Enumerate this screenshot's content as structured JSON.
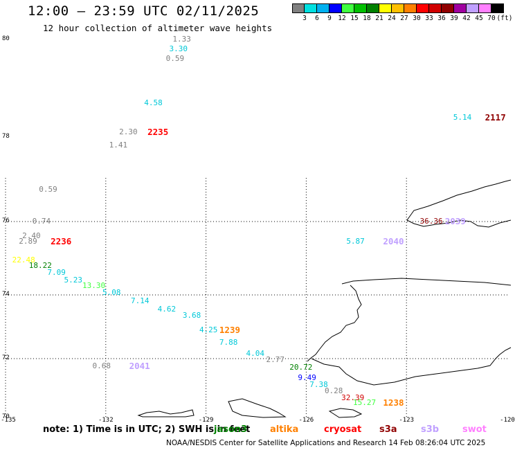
{
  "title": "12:00 – 23:59 UTC 02/11/2025",
  "subtitle": "12 hour collection of altimeter wave heights",
  "colorbar": {
    "colors": [
      "#808080",
      "#00e0e0",
      "#00b0f0",
      "#0000ff",
      "#40ff40",
      "#00c000",
      "#008000",
      "#ffff00",
      "#ffc000",
      "#ff8000",
      "#ff0000",
      "#d00000",
      "#900000",
      "#a000a0",
      "#c0a0ff",
      "#ff80ff",
      "#000000"
    ],
    "labels": [
      "3",
      "6",
      "9",
      "12",
      "15",
      "18",
      "21",
      "24",
      "27",
      "30",
      "33",
      "36",
      "39",
      "42",
      "45",
      "70"
    ],
    "unit": "(ft)"
  },
  "lat_labels": [
    {
      "text": "80",
      "lat": 80
    },
    {
      "text": "78",
      "lat": 78
    },
    {
      "text": "76",
      "lat": 76
    },
    {
      "text": "74",
      "lat": 74
    },
    {
      "text": "72",
      "lat": 72
    },
    {
      "text": "70",
      "lat": 70
    }
  ],
  "lon_labels": [
    {
      "text": "-135",
      "lon": -135
    },
    {
      "text": "-132",
      "lon": -132
    },
    {
      "text": "-129",
      "lon": -129
    },
    {
      "text": "-126",
      "lon": -126
    },
    {
      "text": "-123",
      "lon": -123
    },
    {
      "text": "-120",
      "lon": -120
    }
  ],
  "wave_heights": [
    {
      "value": "1.33",
      "color": "#808080",
      "lon": -130.0,
      "lat": 80.0
    },
    {
      "value": "3.30",
      "color": "#00c8d8",
      "lon": -130.1,
      "lat": 79.8
    },
    {
      "value": "0.59",
      "color": "#808080",
      "lon": -130.2,
      "lat": 79.6
    },
    {
      "value": "4.58",
      "color": "#00c8d8",
      "lon": -130.85,
      "lat": 78.7
    },
    {
      "value": "5.14",
      "color": "#00c8d8",
      "lon": -121.6,
      "lat": 78.4
    },
    {
      "value": "2.30",
      "color": "#808080",
      "lon": -131.6,
      "lat": 78.1
    },
    {
      "value": "1.41",
      "color": "#808080",
      "lon": -131.9,
      "lat": 77.8
    },
    {
      "value": "0.59",
      "color": "#808080",
      "lon": -134.0,
      "lat": 76.75
    },
    {
      "value": "0.74",
      "color": "#808080",
      "lon": -134.2,
      "lat": 76.0
    },
    {
      "value": "36.36",
      "color": "#900000",
      "lon": -122.6,
      "lat": 76.0
    },
    {
      "value": "2.40",
      "color": "#808080",
      "lon": -134.5,
      "lat": 75.6
    },
    {
      "value": "2.89",
      "color": "#808080",
      "lon": -134.6,
      "lat": 75.45
    },
    {
      "value": "5.87",
      "color": "#00c8d8",
      "lon": -124.8,
      "lat": 75.45
    },
    {
      "value": "22.48",
      "color": "#ffff00",
      "lon": -134.8,
      "lat": 74.95
    },
    {
      "value": "18.22",
      "color": "#008000",
      "lon": -134.3,
      "lat": 74.8
    },
    {
      "value": "7.09",
      "color": "#00c8d8",
      "lon": -133.75,
      "lat": 74.6
    },
    {
      "value": "5.23",
      "color": "#00c8d8",
      "lon": -133.25,
      "lat": 74.4
    },
    {
      "value": "13.30",
      "color": "#40ff40",
      "lon": -132.7,
      "lat": 74.25
    },
    {
      "value": "5.08",
      "color": "#00c8d8",
      "lon": -132.1,
      "lat": 74.05
    },
    {
      "value": "7.14",
      "color": "#00c8d8",
      "lon": -131.25,
      "lat": 73.8
    },
    {
      "value": "4.62",
      "color": "#00c8d8",
      "lon": -130.45,
      "lat": 73.55
    },
    {
      "value": "3.68",
      "color": "#00c8d8",
      "lon": -129.7,
      "lat": 73.35
    },
    {
      "value": "4.25",
      "color": "#00c8d8",
      "lon": -129.2,
      "lat": 72.9
    },
    {
      "value": "7.88",
      "color": "#00c8d8",
      "lon": -128.6,
      "lat": 72.5
    },
    {
      "value": "4.04",
      "color": "#00c8d8",
      "lon": -127.8,
      "lat": 72.15
    },
    {
      "value": "2.77",
      "color": "#808080",
      "lon": -127.2,
      "lat": 71.95
    },
    {
      "value": "0.68",
      "color": "#808080",
      "lon": -132.4,
      "lat": 71.75
    },
    {
      "value": "20.72",
      "color": "#008000",
      "lon": -126.5,
      "lat": 71.7
    },
    {
      "value": "9.49",
      "color": "#0000ff",
      "lon": -126.25,
      "lat": 71.35
    },
    {
      "value": "7.38",
      "color": "#00c8d8",
      "lon": -125.9,
      "lat": 71.1
    },
    {
      "value": "0.28",
      "color": "#808080",
      "lon": -125.45,
      "lat": 70.9
    },
    {
      "value": "32.39",
      "color": "#d00000",
      "lon": -124.95,
      "lat": 70.65
    },
    {
      "value": "15.27",
      "color": "#40ff40",
      "lon": -124.6,
      "lat": 70.5
    }
  ],
  "pass_ids": [
    {
      "id": "2235",
      "color": "#ff0000",
      "lon": -130.75,
      "lat": 78.1
    },
    {
      "id": "2117",
      "color": "#900000",
      "lon": -120.65,
      "lat": 78.4
    },
    {
      "id": "2039",
      "color": "#c0a0ff",
      "lon": -121.85,
      "lat": 76.0
    },
    {
      "id": "2236",
      "color": "#ff0000",
      "lon": -133.65,
      "lat": 75.45
    },
    {
      "id": "2040",
      "color": "#c0a0ff",
      "lon": -123.7,
      "lat": 75.45
    },
    {
      "id": "1239",
      "color": "#ff8000",
      "lon": -128.6,
      "lat": 72.9
    },
    {
      "id": "2041",
      "color": "#c0a0ff",
      "lon": -131.3,
      "lat": 71.75
    },
    {
      "id": "1238",
      "color": "#ff8000",
      "lon": -123.7,
      "lat": 70.5
    }
  ],
  "note": "note:  1) Time is in UTC;  2) SWH is in feet",
  "satellites": [
    {
      "name": "jason3",
      "color": "#008000"
    },
    {
      "name": "altika",
      "color": "#ff8000"
    },
    {
      "name": "cryosat",
      "color": "#ff0000"
    },
    {
      "name": "s3a",
      "color": "#900000"
    },
    {
      "name": "s3b",
      "color": "#c0a0ff"
    },
    {
      "name": "swot",
      "color": "#ff80ff"
    }
  ],
  "credit": "NOAA/NESDIS Center for Satellite Applications and Research    14 Feb 08:26:04 UTC 2025"
}
